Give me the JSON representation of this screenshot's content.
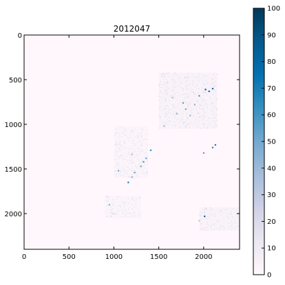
{
  "chart_data": {
    "type": "heatmap",
    "title": "2012047",
    "xlabel": "",
    "ylabel": "",
    "xlim": [
      0,
      2400
    ],
    "ylim": [
      2400,
      0
    ],
    "x_ticks": [
      0,
      500,
      1000,
      1500,
      2000
    ],
    "y_ticks": [
      0,
      500,
      1000,
      1500,
      2000
    ],
    "colorbar": {
      "min": 0,
      "max": 100,
      "ticks": [
        0,
        10,
        20,
        30,
        40,
        50,
        60,
        70,
        80,
        90,
        100
      ],
      "colormap": "PuBu",
      "colors": [
        "#fff7fb",
        "#ece7f2",
        "#d0d1e6",
        "#a6bddb",
        "#74a9cf",
        "#3690c0",
        "#0570b0",
        "#045a8d",
        "#023858"
      ]
    },
    "regions": [
      {
        "x": [
          1500,
          2150
        ],
        "y": [
          420,
          1050
        ],
        "value": 6
      },
      {
        "x": [
          1950,
          2400
        ],
        "y": [
          1930,
          2190
        ],
        "value": 5
      },
      {
        "x": [
          1000,
          1380
        ],
        "y": [
          1020,
          1600
        ],
        "value": 4
      },
      {
        "x": [
          900,
          1300
        ],
        "y": [
          1800,
          2050
        ],
        "value": 4
      }
    ],
    "hotspots": [
      {
        "x": 2020,
        "y": 610,
        "value": 85
      },
      {
        "x": 2060,
        "y": 630,
        "value": 80
      },
      {
        "x": 2100,
        "y": 600,
        "value": 75
      },
      {
        "x": 1950,
        "y": 680,
        "value": 60
      },
      {
        "x": 1770,
        "y": 760,
        "value": 55
      },
      {
        "x": 1800,
        "y": 830,
        "value": 50
      },
      {
        "x": 1700,
        "y": 880,
        "value": 45
      },
      {
        "x": 1850,
        "y": 900,
        "value": 40
      },
      {
        "x": 1650,
        "y": 700,
        "value": 35
      },
      {
        "x": 1900,
        "y": 780,
        "value": 45
      },
      {
        "x": 1410,
        "y": 1290,
        "value": 65
      },
      {
        "x": 1360,
        "y": 1380,
        "value": 55
      },
      {
        "x": 1330,
        "y": 1420,
        "value": 60
      },
      {
        "x": 1300,
        "y": 1470,
        "value": 50
      },
      {
        "x": 1230,
        "y": 1540,
        "value": 55
      },
      {
        "x": 1200,
        "y": 1590,
        "value": 45
      },
      {
        "x": 1160,
        "y": 1650,
        "value": 70
      },
      {
        "x": 2130,
        "y": 1230,
        "value": 70
      },
      {
        "x": 2100,
        "y": 1260,
        "value": 65
      },
      {
        "x": 2000,
        "y": 1320,
        "value": 55
      },
      {
        "x": 1050,
        "y": 1520,
        "value": 50
      },
      {
        "x": 1560,
        "y": 1020,
        "value": 40
      },
      {
        "x": 1200,
        "y": 1340,
        "value": 35
      },
      {
        "x": 950,
        "y": 1900,
        "value": 45
      },
      {
        "x": 2010,
        "y": 2030,
        "value": 80
      },
      {
        "x": 1950,
        "y": 2080,
        "value": 30
      },
      {
        "x": 1000,
        "y": 2000,
        "value": 20
      },
      {
        "x": 2220,
        "y": 2150,
        "value": 12
      }
    ]
  }
}
